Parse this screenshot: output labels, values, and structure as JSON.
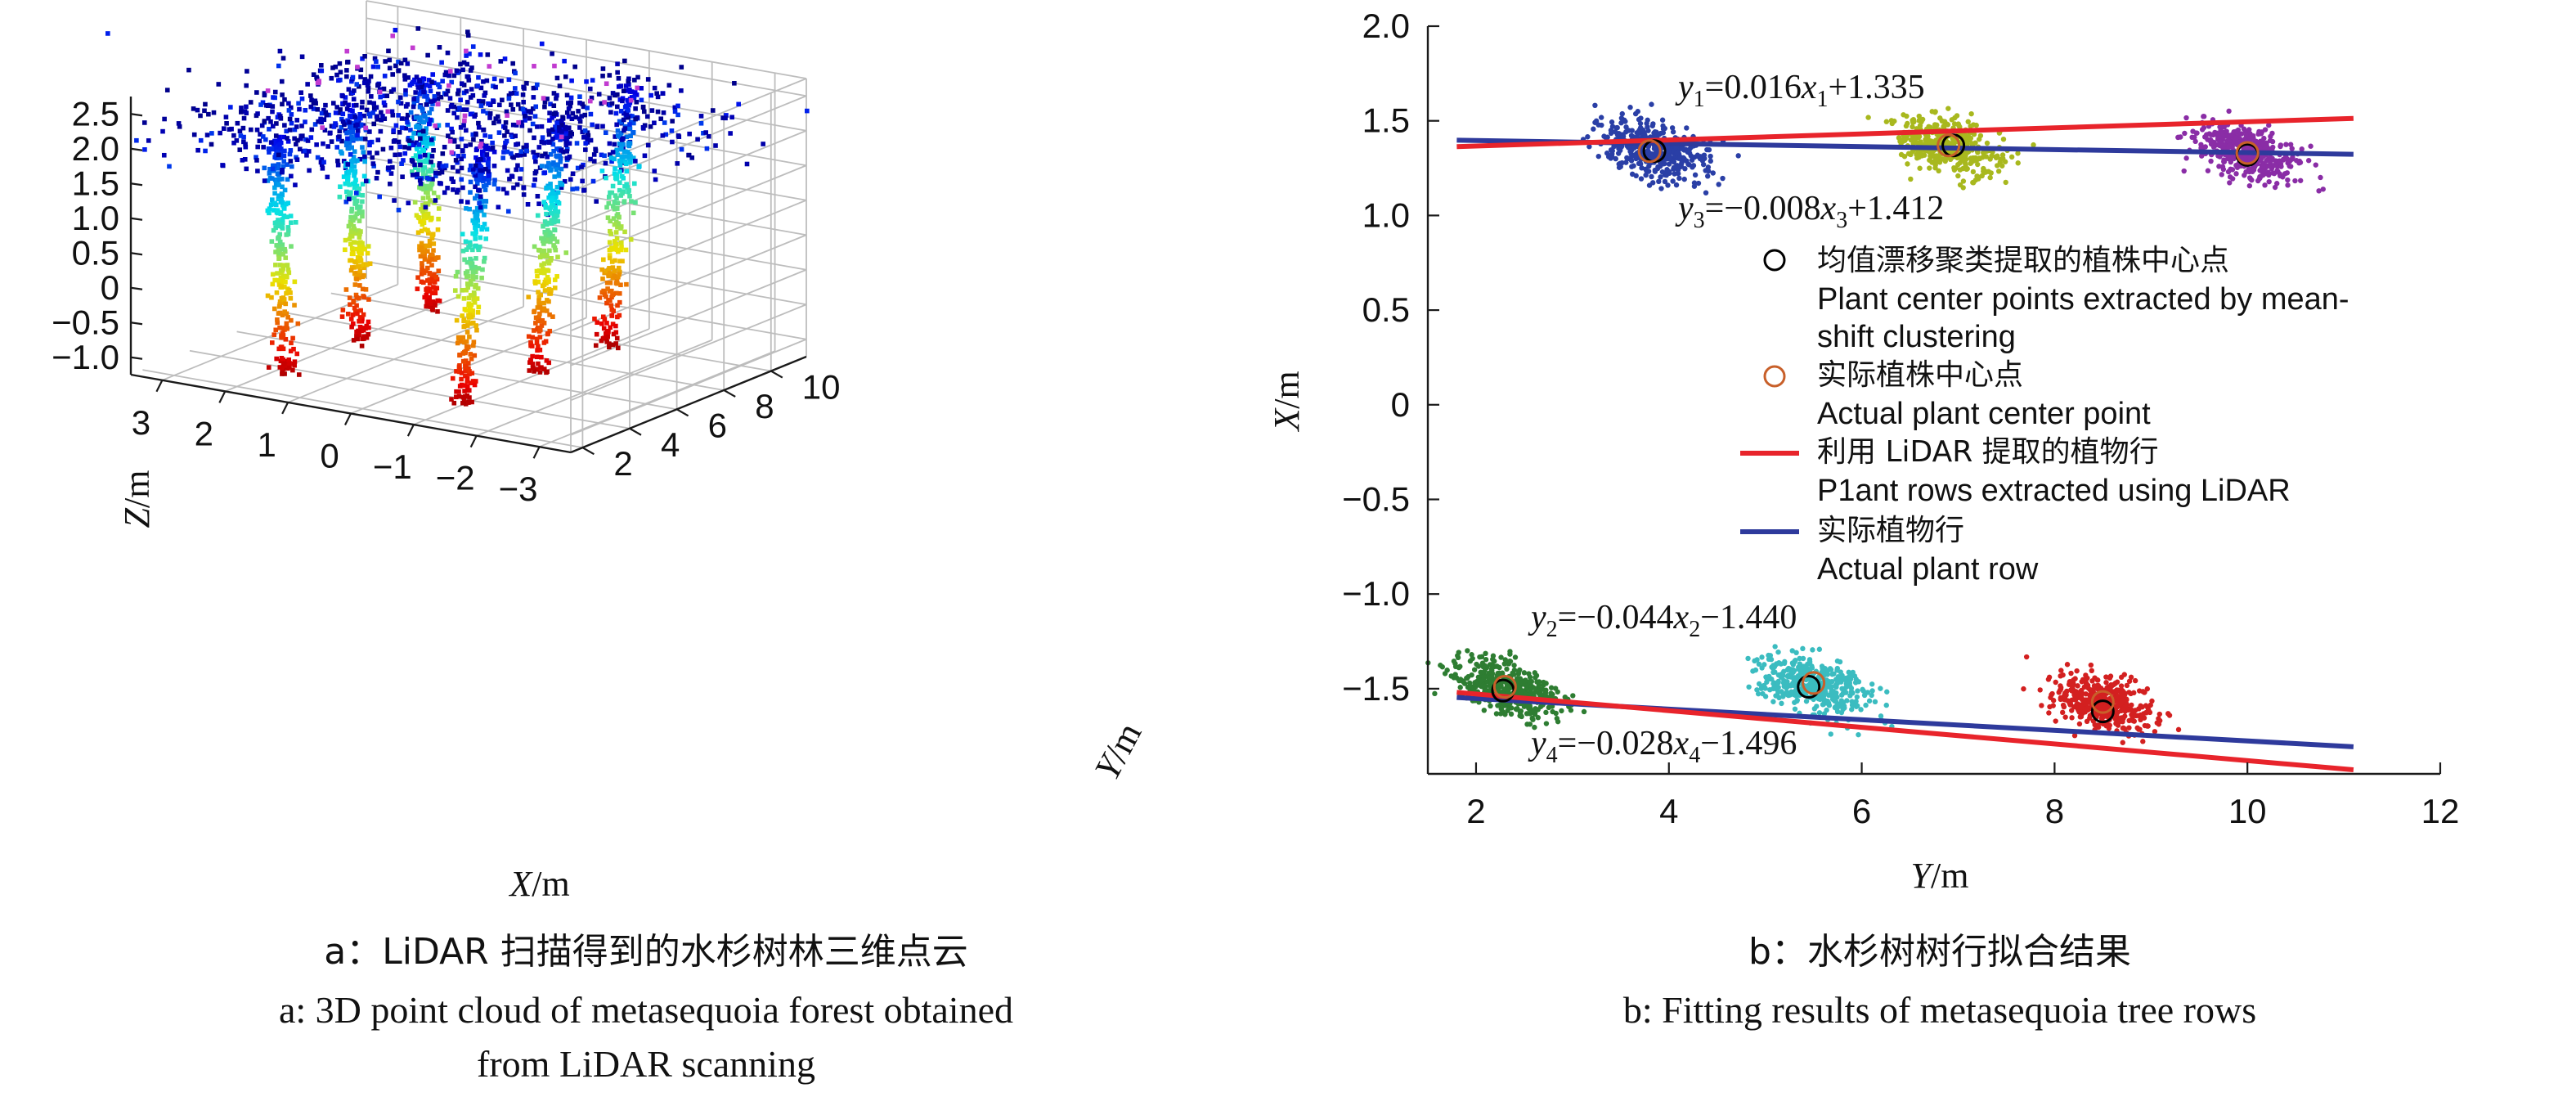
{
  "chart_data": [
    {
      "type": "scatter",
      "subtype": "3d_point_cloud",
      "xlabel": "X/m",
      "ylabel": "Y/m",
      "zlabel": "Z/m",
      "xlim": [
        3.5,
        -3.5
      ],
      "ylim": [
        1.5,
        11.5
      ],
      "zlim": [
        -1.25,
        2.75
      ],
      "x_ticks": [
        "3",
        "2",
        "1",
        "0",
        "−1",
        "−2",
        "−3"
      ],
      "y_ticks": [
        "2",
        "4",
        "6",
        "8",
        "10"
      ],
      "z_ticks": [
        "2.5",
        "2.0",
        "1.5",
        "1.0",
        "0.5",
        "0",
        "−0.5",
        "−1.0"
      ],
      "x_tick_values": [
        3,
        2,
        1,
        0,
        -1,
        -2,
        -3
      ],
      "y_tick_values": [
        2,
        4,
        6,
        8,
        10
      ],
      "z_tick_values": [
        2.5,
        2.0,
        1.5,
        1.0,
        0.5,
        0,
        -0.5,
        -1.0
      ],
      "colormap": "jet",
      "trunks": [
        {
          "x": 1.35,
          "y": 2.3,
          "z_bottom": -1.0,
          "z_top": 2.5
        },
        {
          "x": 1.35,
          "y": 5.5,
          "z_bottom": -1.0,
          "z_top": 2.5
        },
        {
          "x": 1.35,
          "y": 8.5,
          "z_bottom": -1.0,
          "z_top": 2.5
        },
        {
          "x": -1.45,
          "y": 2.3,
          "z_bottom": -1.0,
          "z_top": 2.6
        },
        {
          "x": -1.45,
          "y": 5.5,
          "z_bottom": -1.0,
          "z_top": 2.6
        },
        {
          "x": -1.45,
          "y": 8.5,
          "z_bottom": -1.0,
          "z_top": 2.6
        }
      ],
      "caption_cn": "a：LiDAR 扫描得到的水杉树林三维点云",
      "caption_en_1": "a: 3D point cloud of metasequoia forest obtained",
      "caption_en_2": "from LiDAR scanning"
    },
    {
      "type": "scatter",
      "xlabel": "Y/m",
      "ylabel": "X/m",
      "xlim": [
        1.5,
        12
      ],
      "ylim": [
        -1.95,
        2.0
      ],
      "x_ticks": [
        "2",
        "4",
        "6",
        "8",
        "10",
        "12"
      ],
      "y_ticks": [
        "2.0",
        "1.5",
        "1.0",
        "0.5",
        "0",
        "−0.5",
        "−1.0",
        "−1.5"
      ],
      "x_tick_values": [
        2,
        4,
        6,
        8,
        10,
        12
      ],
      "y_tick_values": [
        2.0,
        1.5,
        1.0,
        0.5,
        0,
        -0.5,
        -1.0,
        -1.5
      ],
      "clusters": [
        {
          "color": "#2a3fa6",
          "x": 3.85,
          "y": 1.35
        },
        {
          "color": "#a8b81e",
          "x": 6.9,
          "y": 1.37
        },
        {
          "color": "#8a2da6",
          "x": 10.0,
          "y": 1.33
        },
        {
          "color": "#2e7d32",
          "x": 2.3,
          "y": -1.5
        },
        {
          "color": "#3bbcc0",
          "x": 5.5,
          "y": -1.48
        },
        {
          "color": "#d32020",
          "x": 8.5,
          "y": -1.58
        }
      ],
      "lidar_centers": [
        {
          "x": 3.85,
          "y": 1.34
        },
        {
          "x": 6.95,
          "y": 1.37
        },
        {
          "x": 10.0,
          "y": 1.32
        },
        {
          "x": 2.28,
          "y": -1.51
        },
        {
          "x": 5.45,
          "y": -1.49
        },
        {
          "x": 8.5,
          "y": -1.62
        }
      ],
      "actual_centers": [
        {
          "x": 3.8,
          "y": 1.34
        },
        {
          "x": 6.9,
          "y": 1.37
        },
        {
          "x": 10.0,
          "y": 1.33
        },
        {
          "x": 2.3,
          "y": -1.49
        },
        {
          "x": 5.5,
          "y": -1.47
        },
        {
          "x": 8.5,
          "y": -1.57
        }
      ],
      "lines": [
        {
          "series": "lidar",
          "slope": 0.016,
          "intercept": 1.335,
          "x_range": [
            1.8,
            11.1
          ]
        },
        {
          "series": "actual",
          "slope": -0.008,
          "intercept": 1.412,
          "x_range": [
            1.8,
            11.1
          ]
        },
        {
          "series": "lidar",
          "slope": -0.044,
          "intercept": -1.44,
          "x_range": [
            1.8,
            11.1
          ]
        },
        {
          "series": "actual",
          "slope": -0.028,
          "intercept": -1.496,
          "x_range": [
            1.8,
            11.1
          ]
        }
      ],
      "line_colors": {
        "lidar": "#e8242b",
        "actual": "#2e3a9c"
      },
      "marker_colors": {
        "lidar_center": "#000000",
        "actual_center": "#c8602a"
      },
      "equations": [
        {
          "var": "y",
          "sub": "1",
          "text_a": "=0.016",
          "xvar": "x",
          "xsub": "1",
          "text_b": "+1.335"
        },
        {
          "var": "y",
          "sub": "3",
          "text_a": "=−0.008",
          "xvar": "x",
          "xsub": "3",
          "text_b": "+1.412"
        },
        {
          "var": "y",
          "sub": "2",
          "text_a": "=−0.044",
          "xvar": "x",
          "xsub": "2",
          "text_b": "−1.440"
        },
        {
          "var": "y",
          "sub": "4",
          "text_a": "=−0.028",
          "xvar": "x",
          "xsub": "4",
          "text_b": "−1.496"
        }
      ],
      "legend": [
        {
          "cn": "均值漂移聚类提取的植株中心点",
          "en_1": "Plant center points extracted by mean-",
          "en_2": "shift clustering"
        },
        {
          "cn": "实际植株中心点",
          "en_1": "Actual plant center point"
        },
        {
          "cn": "利用 LiDAR 提取的植物行",
          "en_1": "P1ant rows extracted using LiDAR"
        },
        {
          "cn": "实际植物行",
          "en_1": "Actual plant row"
        }
      ],
      "legend_placement": "right-middle",
      "caption_cn": "b：水杉树树行拟合结果",
      "caption_en": "b: Fitting results of metasequoia tree rows"
    }
  ]
}
